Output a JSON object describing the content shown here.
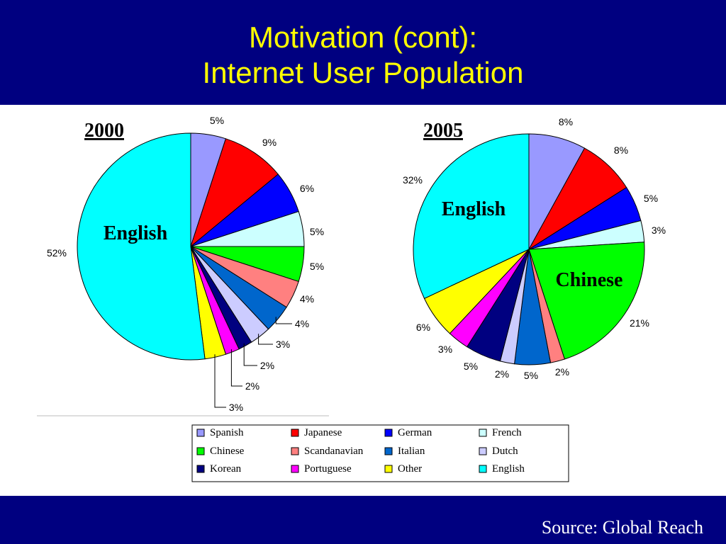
{
  "title": {
    "line1": "Motivation (cont):",
    "line2": "Internet User Population"
  },
  "footer": {
    "source": "Source: Global Reach"
  },
  "chart_data": [
    {
      "type": "pie",
      "title": "2000",
      "inside_labels": [
        {
          "text": "English",
          "slice": "English"
        }
      ],
      "slices": [
        {
          "label": "Spanish",
          "value": 5,
          "display": "5%"
        },
        {
          "label": "Japanese",
          "value": 9,
          "display": "9%"
        },
        {
          "label": "German",
          "value": 6,
          "display": "6%"
        },
        {
          "label": "French",
          "value": 5,
          "display": "5%"
        },
        {
          "label": "Chinese",
          "value": 5,
          "display": "5%"
        },
        {
          "label": "Scandanavian",
          "value": 4,
          "display": "4%"
        },
        {
          "label": "Italian",
          "value": 4,
          "display": "4%"
        },
        {
          "label": "Dutch",
          "value": 3,
          "display": "3%"
        },
        {
          "label": "Korean",
          "value": 2,
          "display": "2%"
        },
        {
          "label": "Portuguese",
          "value": 2,
          "display": "2%"
        },
        {
          "label": "Other",
          "value": 3,
          "display": "3%"
        },
        {
          "label": "English",
          "value": 52,
          "display": "52%"
        }
      ]
    },
    {
      "type": "pie",
      "title": "2005",
      "inside_labels": [
        {
          "text": "English",
          "slice": "English"
        },
        {
          "text": "Chinese",
          "slice": "Chinese"
        }
      ],
      "slices": [
        {
          "label": "Spanish",
          "value": 8,
          "display": "8%"
        },
        {
          "label": "Japanese",
          "value": 8,
          "display": "8%"
        },
        {
          "label": "German",
          "value": 5,
          "display": "5%"
        },
        {
          "label": "French",
          "value": 3,
          "display": "3%"
        },
        {
          "label": "Chinese",
          "value": 21,
          "display": "21%"
        },
        {
          "label": "Scandanavian",
          "value": 2,
          "display": "2%"
        },
        {
          "label": "Italian",
          "value": 5,
          "display": "5%"
        },
        {
          "label": "Dutch",
          "value": 2,
          "display": "2%"
        },
        {
          "label": "Korean",
          "value": 5,
          "display": "5%"
        },
        {
          "label": "Portuguese",
          "value": 3,
          "display": "3%"
        },
        {
          "label": "Other",
          "value": 6,
          "display": "6%"
        },
        {
          "label": "English",
          "value": 32,
          "display": "32%"
        }
      ]
    }
  ],
  "legend": {
    "placement": "bottom-center",
    "entries": [
      {
        "label": "Spanish",
        "color": "#9999ff"
      },
      {
        "label": "Japanese",
        "color": "#ff0000"
      },
      {
        "label": "German",
        "color": "#0000ff"
      },
      {
        "label": "French",
        "color": "#ccffff"
      },
      {
        "label": "Chinese",
        "color": "#00ff00"
      },
      {
        "label": "Scandanavian",
        "color": "#ff8080"
      },
      {
        "label": "Italian",
        "color": "#0066cc"
      },
      {
        "label": "Dutch",
        "color": "#ccccff"
      },
      {
        "label": "Korean",
        "color": "#000080"
      },
      {
        "label": "Portuguese",
        "color": "#ff00ff"
      },
      {
        "label": "Other",
        "color": "#ffff00"
      },
      {
        "label": "English",
        "color": "#00ffff"
      }
    ]
  }
}
